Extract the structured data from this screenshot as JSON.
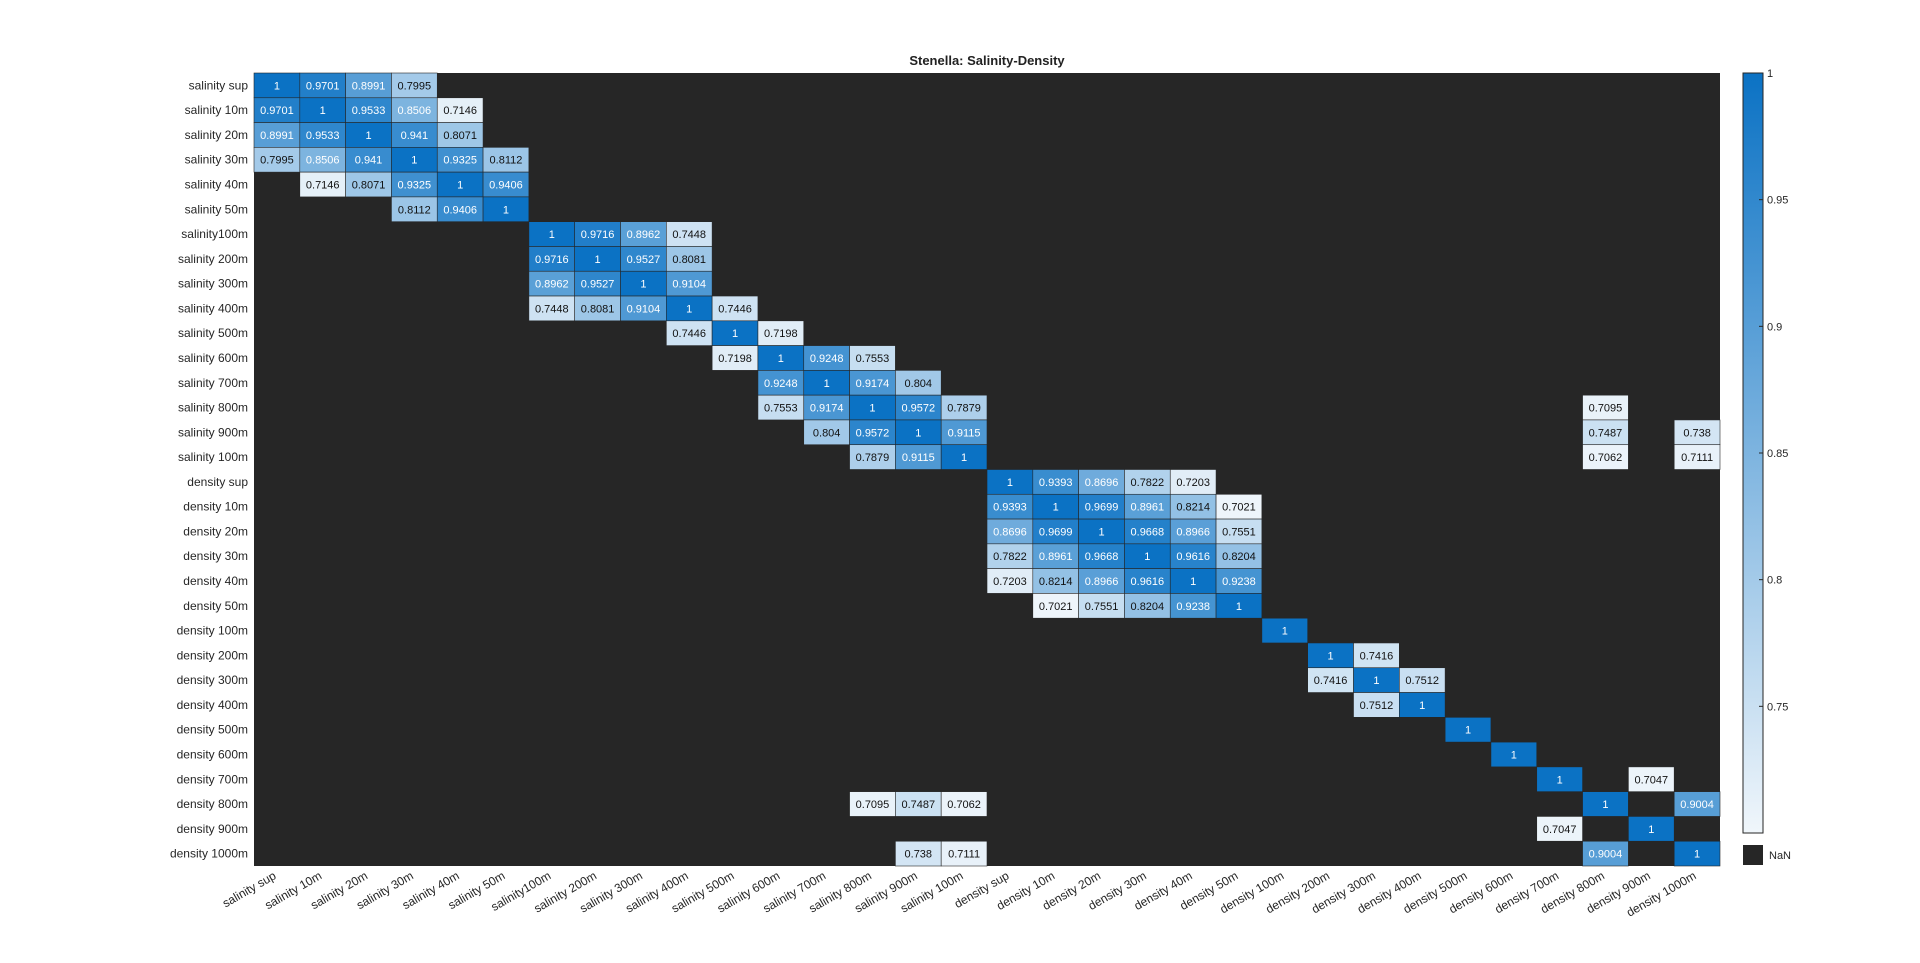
{
  "chart_data": {
    "type": "heatmap",
    "title": "Stenella: Salinity-Density",
    "xlabels": [
      "salinity sup",
      "salinity 10m",
      "salinity 20m",
      "salinity 30m",
      "salinity 40m",
      "salinity 50m",
      "salinity100m",
      "salinity 200m",
      "salinity 300m",
      "salinity 400m",
      "salinity 500m",
      "salinity 600m",
      "salinity 700m",
      "salinity 800m",
      "salinity 900m",
      "salinity 100m",
      "density sup",
      "density 10m",
      "density 20m",
      "density 30m",
      "density 40m",
      "density 50m",
      "density 100m",
      "density 200m",
      "density 300m",
      "density 400m",
      "density 500m",
      "density 600m",
      "density 700m",
      "density 800m",
      "density 900m",
      "density 1000m"
    ],
    "ylabels": [
      "salinity sup",
      "salinity 10m",
      "salinity 20m",
      "salinity 30m",
      "salinity 40m",
      "salinity 50m",
      "salinity100m",
      "salinity 200m",
      "salinity 300m",
      "salinity 400m",
      "salinity 500m",
      "salinity 600m",
      "salinity 700m",
      "salinity 800m",
      "salinity 900m",
      "salinity 100m",
      "density sup",
      "density 10m",
      "density 20m",
      "density 30m",
      "density 40m",
      "density 50m",
      "density 100m",
      "density 200m",
      "density 300m",
      "density 400m",
      "density 500m",
      "density 600m",
      "density 700m",
      "density 800m",
      "density 900m",
      "density 1000m"
    ],
    "cells": [
      [
        0,
        0,
        "1"
      ],
      [
        0,
        1,
        "0.9701"
      ],
      [
        0,
        2,
        "0.8991"
      ],
      [
        0,
        3,
        "0.7995"
      ],
      [
        1,
        0,
        "0.9701"
      ],
      [
        1,
        1,
        "1"
      ],
      [
        1,
        2,
        "0.9533"
      ],
      [
        1,
        3,
        "0.8506"
      ],
      [
        1,
        4,
        "0.7146"
      ],
      [
        2,
        0,
        "0.8991"
      ],
      [
        2,
        1,
        "0.9533"
      ],
      [
        2,
        2,
        "1"
      ],
      [
        2,
        3,
        "0.941"
      ],
      [
        2,
        4,
        "0.8071"
      ],
      [
        3,
        0,
        "0.7995"
      ],
      [
        3,
        1,
        "0.8506"
      ],
      [
        3,
        2,
        "0.941"
      ],
      [
        3,
        3,
        "1"
      ],
      [
        3,
        4,
        "0.9325"
      ],
      [
        3,
        5,
        "0.8112"
      ],
      [
        4,
        1,
        "0.7146"
      ],
      [
        4,
        2,
        "0.8071"
      ],
      [
        4,
        3,
        "0.9325"
      ],
      [
        4,
        4,
        "1"
      ],
      [
        4,
        5,
        "0.9406"
      ],
      [
        5,
        3,
        "0.8112"
      ],
      [
        5,
        4,
        "0.9406"
      ],
      [
        5,
        5,
        "1"
      ],
      [
        6,
        6,
        "1"
      ],
      [
        6,
        7,
        "0.9716"
      ],
      [
        6,
        8,
        "0.8962"
      ],
      [
        6,
        9,
        "0.7448"
      ],
      [
        7,
        6,
        "0.9716"
      ],
      [
        7,
        7,
        "1"
      ],
      [
        7,
        8,
        "0.9527"
      ],
      [
        7,
        9,
        "0.8081"
      ],
      [
        8,
        6,
        "0.8962"
      ],
      [
        8,
        7,
        "0.9527"
      ],
      [
        8,
        8,
        "1"
      ],
      [
        8,
        9,
        "0.9104"
      ],
      [
        9,
        6,
        "0.7448"
      ],
      [
        9,
        7,
        "0.8081"
      ],
      [
        9,
        8,
        "0.9104"
      ],
      [
        9,
        9,
        "1"
      ],
      [
        9,
        10,
        "0.7446"
      ],
      [
        10,
        9,
        "0.7446"
      ],
      [
        10,
        10,
        "1"
      ],
      [
        10,
        11,
        "0.7198"
      ],
      [
        11,
        10,
        "0.7198"
      ],
      [
        11,
        11,
        "1"
      ],
      [
        11,
        12,
        "0.9248"
      ],
      [
        11,
        13,
        "0.7553"
      ],
      [
        12,
        11,
        "0.9248"
      ],
      [
        12,
        12,
        "1"
      ],
      [
        12,
        13,
        "0.9174"
      ],
      [
        12,
        14,
        "0.804"
      ],
      [
        13,
        11,
        "0.7553"
      ],
      [
        13,
        12,
        "0.9174"
      ],
      [
        13,
        13,
        "1"
      ],
      [
        13,
        14,
        "0.9572"
      ],
      [
        13,
        15,
        "0.7879"
      ],
      [
        13,
        29,
        "0.7095"
      ],
      [
        14,
        12,
        "0.804"
      ],
      [
        14,
        13,
        "0.9572"
      ],
      [
        14,
        14,
        "1"
      ],
      [
        14,
        15,
        "0.9115"
      ],
      [
        14,
        29,
        "0.7487"
      ],
      [
        14,
        31,
        "0.738"
      ],
      [
        15,
        13,
        "0.7879"
      ],
      [
        15,
        14,
        "0.9115"
      ],
      [
        15,
        15,
        "1"
      ],
      [
        15,
        29,
        "0.7062"
      ],
      [
        15,
        31,
        "0.7111"
      ],
      [
        16,
        16,
        "1"
      ],
      [
        16,
        17,
        "0.9393"
      ],
      [
        16,
        18,
        "0.8696"
      ],
      [
        16,
        19,
        "0.7822"
      ],
      [
        16,
        20,
        "0.7203"
      ],
      [
        17,
        16,
        "0.9393"
      ],
      [
        17,
        17,
        "1"
      ],
      [
        17,
        18,
        "0.9699"
      ],
      [
        17,
        19,
        "0.8961"
      ],
      [
        17,
        20,
        "0.8214"
      ],
      [
        17,
        21,
        "0.7021"
      ],
      [
        18,
        16,
        "0.8696"
      ],
      [
        18,
        17,
        "0.9699"
      ],
      [
        18,
        18,
        "1"
      ],
      [
        18,
        19,
        "0.9668"
      ],
      [
        18,
        20,
        "0.8966"
      ],
      [
        18,
        21,
        "0.7551"
      ],
      [
        19,
        16,
        "0.7822"
      ],
      [
        19,
        17,
        "0.8961"
      ],
      [
        19,
        18,
        "0.9668"
      ],
      [
        19,
        19,
        "1"
      ],
      [
        19,
        20,
        "0.9616"
      ],
      [
        19,
        21,
        "0.8204"
      ],
      [
        20,
        16,
        "0.7203"
      ],
      [
        20,
        17,
        "0.8214"
      ],
      [
        20,
        18,
        "0.8966"
      ],
      [
        20,
        19,
        "0.9616"
      ],
      [
        20,
        20,
        "1"
      ],
      [
        20,
        21,
        "0.9238"
      ],
      [
        21,
        17,
        "0.7021"
      ],
      [
        21,
        18,
        "0.7551"
      ],
      [
        21,
        19,
        "0.8204"
      ],
      [
        21,
        20,
        "0.9238"
      ],
      [
        21,
        21,
        "1"
      ],
      [
        22,
        22,
        "1"
      ],
      [
        23,
        23,
        "1"
      ],
      [
        23,
        24,
        "0.7416"
      ],
      [
        24,
        23,
        "0.7416"
      ],
      [
        24,
        24,
        "1"
      ],
      [
        24,
        25,
        "0.7512"
      ],
      [
        25,
        24,
        "0.7512"
      ],
      [
        25,
        25,
        "1"
      ],
      [
        26,
        26,
        "1"
      ],
      [
        27,
        27,
        "1"
      ],
      [
        28,
        28,
        "1"
      ],
      [
        28,
        30,
        "0.7047"
      ],
      [
        29,
        13,
        "0.7095"
      ],
      [
        29,
        14,
        "0.7487"
      ],
      [
        29,
        15,
        "0.7062"
      ],
      [
        29,
        29,
        "1"
      ],
      [
        29,
        31,
        "0.9004"
      ],
      [
        30,
        28,
        "0.7047"
      ],
      [
        30,
        30,
        "1"
      ],
      [
        31,
        14,
        "0.738"
      ],
      [
        31,
        15,
        "0.7111"
      ],
      [
        31,
        29,
        "0.9004"
      ],
      [
        31,
        31,
        "1"
      ]
    ],
    "colorbar": {
      "min": 0.7,
      "max": 1.0,
      "ticks": [
        "1",
        "0.95",
        "0.9",
        "0.85",
        "0.8",
        "0.75"
      ],
      "tick_values": [
        1.0,
        0.95,
        0.9,
        0.85,
        0.8,
        0.75
      ],
      "colors": [
        "#f0f6fb",
        "#0b72c4"
      ],
      "nan_label": "NaN",
      "nan_color": "#262626"
    },
    "grid": false
  }
}
